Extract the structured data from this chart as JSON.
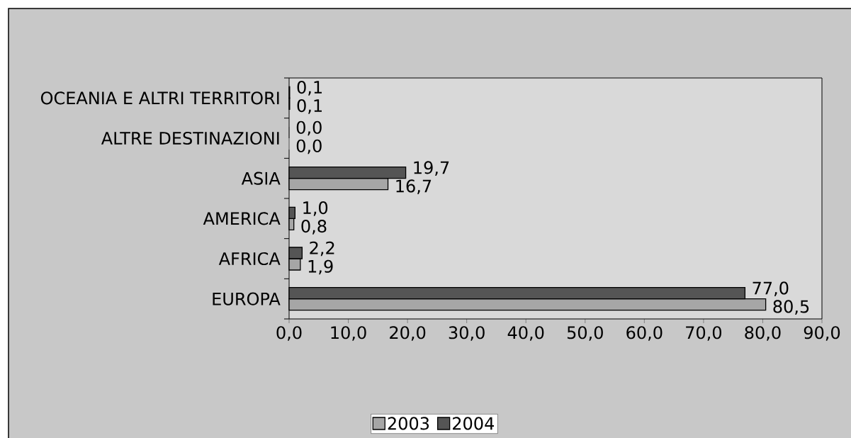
{
  "chart_data": {
    "type": "bar",
    "orientation": "horizontal",
    "categories": [
      "OCEANIA E ALTRI TERRITORI",
      "ALTRE DESTINAZIONI",
      "ASIA",
      "AMERICA",
      "AFRICA",
      "EUROPA"
    ],
    "series": [
      {
        "name": "2003",
        "color": "#a6a6a6",
        "values": [
          0.1,
          0.0,
          16.7,
          0.8,
          1.9,
          80.5
        ],
        "value_labels": [
          "0,1",
          "0,0",
          "16,7",
          "0,8",
          "1,9",
          "80,5"
        ]
      },
      {
        "name": "2004",
        "color": "#555555",
        "values": [
          0.1,
          0.0,
          19.7,
          1.0,
          2.2,
          77.0
        ],
        "value_labels": [
          "0,1",
          "0,0",
          "19,7",
          "1,0",
          "2,2",
          "77,0"
        ]
      }
    ],
    "xlim": [
      0,
      90
    ],
    "xticks": [
      {
        "value": 0,
        "label": "0,0"
      },
      {
        "value": 10,
        "label": "10,0"
      },
      {
        "value": 20,
        "label": "20,0"
      },
      {
        "value": 30,
        "label": "30,0"
      },
      {
        "value": 40,
        "label": "40,0"
      },
      {
        "value": 50,
        "label": "50,0"
      },
      {
        "value": 60,
        "label": "60,0"
      },
      {
        "value": 70,
        "label": "70,0"
      },
      {
        "value": 80,
        "label": "80,0"
      },
      {
        "value": 90,
        "label": "90,0"
      }
    ],
    "legend": "bottom"
  }
}
